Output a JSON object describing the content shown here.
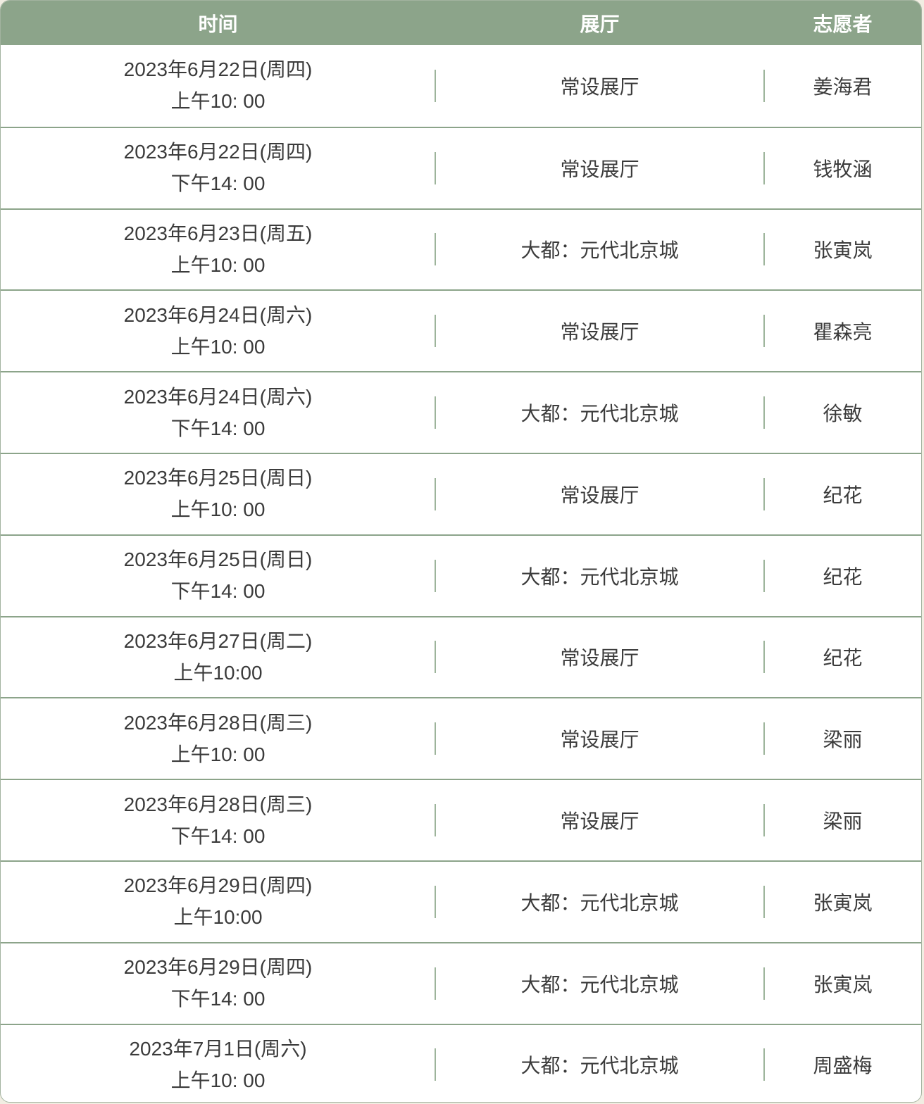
{
  "page": {
    "background_color": "#F1EDE2"
  },
  "table": {
    "header_bg_color": "#8CA48A",
    "header_text_color": "#FFFFFF",
    "row_divider_color": "#8CA48A",
    "column_divider_color": "#9DB49B",
    "body_text_color": "#3B3B3B",
    "columns": [
      "时间",
      "展厅",
      "志愿者"
    ],
    "rows": [
      {
        "date": "2023年6月22日(周四)",
        "time": "上午10: 00",
        "hall": "常设展厅",
        "volunteer": "姜海君"
      },
      {
        "date": "2023年6月22日(周四)",
        "time": "下午14: 00",
        "hall": "常设展厅",
        "volunteer": "钱牧涵"
      },
      {
        "date": "2023年6月23日(周五)",
        "time": "上午10: 00",
        "hall": "大都：元代北京城",
        "volunteer": "张寅岚"
      },
      {
        "date": "2023年6月24日(周六)",
        "time": "上午10: 00",
        "hall": "常设展厅",
        "volunteer": "瞿森亮"
      },
      {
        "date": "2023年6月24日(周六)",
        "time": "下午14: 00",
        "hall": "大都：元代北京城",
        "volunteer": "徐敏"
      },
      {
        "date": "2023年6月25日(周日)",
        "time": "上午10: 00",
        "hall": "常设展厅",
        "volunteer": "纪花"
      },
      {
        "date": "2023年6月25日(周日)",
        "time": "下午14: 00",
        "hall": "大都：元代北京城",
        "volunteer": "纪花"
      },
      {
        "date": "2023年6月27日(周二)",
        "time": "上午10:00",
        "hall": "常设展厅",
        "volunteer": "纪花"
      },
      {
        "date": "2023年6月28日(周三)",
        "time": "上午10: 00",
        "hall": "常设展厅",
        "volunteer": "梁丽"
      },
      {
        "date": "2023年6月28日(周三)",
        "time": "下午14: 00",
        "hall": "常设展厅",
        "volunteer": "梁丽"
      },
      {
        "date": "2023年6月29日(周四)",
        "time": "上午10:00",
        "hall": "大都：元代北京城",
        "volunteer": "张寅岚"
      },
      {
        "date": "2023年6月29日(周四)",
        "time": "下午14: 00",
        "hall": "大都：元代北京城",
        "volunteer": "张寅岚"
      },
      {
        "date": "2023年7月1日(周六)",
        "time": "上午10: 00",
        "hall": "大都：元代北京城",
        "volunteer": "周盛梅"
      }
    ]
  }
}
